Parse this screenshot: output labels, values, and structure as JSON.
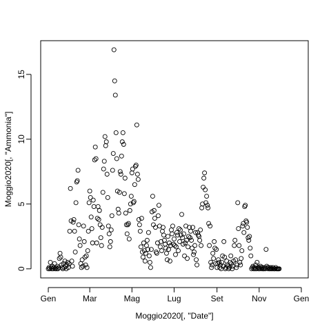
{
  "chart_data": {
    "type": "scatter",
    "title": "",
    "xlabel": "Moggio2020[, \"Date\"]",
    "ylabel": "Moggio2020[, \"Ammonia\"]",
    "x_unit": "date",
    "x_range": [
      "2020-01-01",
      "2021-01-01"
    ],
    "xlim": [
      "2019-12-21",
      "2021-01-11"
    ],
    "ylim": [
      -0.7,
      17.6
    ],
    "x_ticks": [
      {
        "date": "2020-01-01",
        "label": "Gen"
      },
      {
        "date": "2020-03-01",
        "label": "Mar"
      },
      {
        "date": "2020-05-01",
        "label": "Mag"
      },
      {
        "date": "2020-07-01",
        "label": "Lug"
      },
      {
        "date": "2020-09-01",
        "label": "Set"
      },
      {
        "date": "2020-11-01",
        "label": "Nov"
      },
      {
        "date": "2021-01-01",
        "label": "Gen"
      }
    ],
    "y_ticks": [
      0,
      5,
      10,
      15
    ],
    "grid": false,
    "marker": "open-circle",
    "marker_color": "#000000",
    "points": [
      [
        "2020-01-01",
        0.0
      ],
      [
        "2020-01-02",
        0.1
      ],
      [
        "2020-01-03",
        0.0
      ],
      [
        "2020-01-04",
        0.5
      ],
      [
        "2020-01-05",
        0.1
      ],
      [
        "2020-01-06",
        0.0
      ],
      [
        "2020-01-07",
        0.2
      ],
      [
        "2020-01-08",
        0.0
      ],
      [
        "2020-01-09",
        0.1
      ],
      [
        "2020-01-10",
        0.4
      ],
      [
        "2020-01-11",
        0.0
      ],
      [
        "2020-01-12",
        0.1
      ],
      [
        "2020-01-13",
        0.0
      ],
      [
        "2020-01-14",
        0.2
      ],
      [
        "2020-01-15",
        0.0
      ],
      [
        "2020-01-16",
        0.1
      ],
      [
        "2020-01-17",
        0.8
      ],
      [
        "2020-01-18",
        1.2
      ],
      [
        "2020-01-19",
        0.9
      ],
      [
        "2020-01-20",
        0.3
      ],
      [
        "2020-01-21",
        0.1
      ],
      [
        "2020-01-22",
        0.0
      ],
      [
        "2020-01-23",
        0.4
      ],
      [
        "2020-01-24",
        0.1
      ],
      [
        "2020-01-25",
        0.6
      ],
      [
        "2020-01-26",
        0.2
      ],
      [
        "2020-01-27",
        0.0
      ],
      [
        "2020-01-28",
        0.3
      ],
      [
        "2020-01-29",
        0.5
      ],
      [
        "2020-01-30",
        0.1
      ],
      [
        "2020-01-31",
        0.4
      ],
      [
        "2020-02-01",
        2.9
      ],
      [
        "2020-02-02",
        6.2
      ],
      [
        "2020-02-03",
        3.7
      ],
      [
        "2020-02-04",
        0.6
      ],
      [
        "2020-02-05",
        0.2
      ],
      [
        "2020-02-06",
        3.6
      ],
      [
        "2020-02-07",
        3.8
      ],
      [
        "2020-02-08",
        2.9
      ],
      [
        "2020-02-09",
        1.3
      ],
      [
        "2020-02-10",
        5.1
      ],
      [
        "2020-02-11",
        6.7
      ],
      [
        "2020-02-12",
        6.8
      ],
      [
        "2020-02-13",
        7.6
      ],
      [
        "2020-02-14",
        3.4
      ],
      [
        "2020-02-15",
        2.3
      ],
      [
        "2020-02-16",
        1.8
      ],
      [
        "2020-02-17",
        0.4
      ],
      [
        "2020-02-18",
        0.1
      ],
      [
        "2020-02-19",
        0.7
      ],
      [
        "2020-02-20",
        0.2
      ],
      [
        "2020-02-21",
        3.3
      ],
      [
        "2020-02-22",
        2.1
      ],
      [
        "2020-02-23",
        0.9
      ],
      [
        "2020-02-24",
        0.3
      ],
      [
        "2020-02-25",
        1.0
      ],
      [
        "2020-02-26",
        0.1
      ],
      [
        "2020-02-27",
        1.4
      ],
      [
        "2020-02-28",
        2.9
      ],
      [
        "2020-02-29",
        5.1
      ],
      [
        "2020-03-01",
        6.0
      ],
      [
        "2020-03-02",
        5.5
      ],
      [
        "2020-03-03",
        4.0
      ],
      [
        "2020-03-04",
        3.1
      ],
      [
        "2020-03-05",
        2.0
      ],
      [
        "2020-03-06",
        5.3
      ],
      [
        "2020-03-07",
        4.8
      ],
      [
        "2020-03-08",
        8.4
      ],
      [
        "2020-03-09",
        9.4
      ],
      [
        "2020-03-10",
        8.5
      ],
      [
        "2020-03-11",
        2.0
      ],
      [
        "2020-03-12",
        3.9
      ],
      [
        "2020-03-13",
        4.8
      ],
      [
        "2020-03-14",
        3.8
      ],
      [
        "2020-03-15",
        4.5
      ],
      [
        "2020-03-16",
        3.4
      ],
      [
        "2020-03-17",
        2.4
      ],
      [
        "2020-03-18",
        1.8
      ],
      [
        "2020-03-19",
        3.2
      ],
      [
        "2020-03-20",
        5.9
      ],
      [
        "2020-03-21",
        7.7
      ],
      [
        "2020-03-22",
        8.3
      ],
      [
        "2020-03-23",
        10.2
      ],
      [
        "2020-03-24",
        9.5
      ],
      [
        "2020-03-25",
        9.8
      ],
      [
        "2020-03-26",
        7.3
      ],
      [
        "2020-03-27",
        5.5
      ],
      [
        "2020-03-28",
        3.3
      ],
      [
        "2020-03-29",
        2.7
      ],
      [
        "2020-03-30",
        1.7
      ],
      [
        "2020-03-31",
        2.1
      ],
      [
        "2020-04-01",
        3.0
      ],
      [
        "2020-04-02",
        4.1
      ],
      [
        "2020-04-03",
        7.6
      ],
      [
        "2020-04-04",
        8.9
      ],
      [
        "2020-04-05",
        16.9
      ],
      [
        "2020-04-06",
        14.5
      ],
      [
        "2020-04-07",
        13.4
      ],
      [
        "2020-04-08",
        10.5
      ],
      [
        "2020-04-09",
        8.5
      ],
      [
        "2020-04-10",
        6.0
      ],
      [
        "2020-04-11",
        4.6
      ],
      [
        "2020-04-12",
        4.3
      ],
      [
        "2020-04-13",
        5.9
      ],
      [
        "2020-04-14",
        7.5
      ],
      [
        "2020-04-15",
        7.3
      ],
      [
        "2020-04-16",
        8.7
      ],
      [
        "2020-04-17",
        9.8
      ],
      [
        "2020-04-18",
        10.5
      ],
      [
        "2020-04-19",
        9.6
      ],
      [
        "2020-04-20",
        5.8
      ],
      [
        "2020-04-21",
        7.0
      ],
      [
        "2020-04-22",
        4.3
      ],
      [
        "2020-04-23",
        3.4
      ],
      [
        "2020-04-24",
        2.7
      ],
      [
        "2020-04-25",
        3.4
      ],
      [
        "2020-04-26",
        3.5
      ],
      [
        "2020-04-27",
        2.3
      ],
      [
        "2020-04-28",
        4.5
      ],
      [
        "2020-04-29",
        5.0
      ],
      [
        "2020-04-30",
        5.6
      ],
      [
        "2020-05-01",
        7.4
      ],
      [
        "2020-05-02",
        7.7
      ],
      [
        "2020-05-03",
        5.1
      ],
      [
        "2020-05-04",
        5.2
      ],
      [
        "2020-05-05",
        6.5
      ],
      [
        "2020-05-06",
        7.9
      ],
      [
        "2020-05-07",
        8.0
      ],
      [
        "2020-05-08",
        11.1
      ],
      [
        "2020-05-09",
        7.3
      ],
      [
        "2020-05-10",
        6.9
      ],
      [
        "2020-05-11",
        3.8
      ],
      [
        "2020-05-12",
        3.4
      ],
      [
        "2020-05-13",
        2.9
      ],
      [
        "2020-05-14",
        1.7
      ],
      [
        "2020-05-15",
        3.9
      ],
      [
        "2020-05-16",
        1.3
      ],
      [
        "2020-05-17",
        0.9
      ],
      [
        "2020-05-18",
        2.0
      ],
      [
        "2020-05-19",
        1.4
      ],
      [
        "2020-05-20",
        0.6
      ],
      [
        "2020-05-21",
        1.2
      ],
      [
        "2020-05-22",
        1.8
      ],
      [
        "2020-05-23",
        2.2
      ],
      [
        "2020-05-24",
        1.5
      ],
      [
        "2020-05-25",
        2.8
      ],
      [
        "2020-05-26",
        1.0
      ],
      [
        "2020-05-27",
        0.5
      ],
      [
        "2020-05-28",
        0.1
      ],
      [
        "2020-05-29",
        1.5
      ],
      [
        "2020-05-30",
        4.4
      ],
      [
        "2020-05-31",
        5.6
      ],
      [
        "2020-06-01",
        3.4
      ],
      [
        "2020-06-02",
        4.5
      ],
      [
        "2020-06-03",
        3.9
      ],
      [
        "2020-06-04",
        3.2
      ],
      [
        "2020-06-05",
        1.3
      ],
      [
        "2020-06-06",
        1.2
      ],
      [
        "2020-06-07",
        2.0
      ],
      [
        "2020-06-08",
        4.1
      ],
      [
        "2020-06-09",
        4.9
      ],
      [
        "2020-06-10",
        3.3
      ],
      [
        "2020-06-11",
        1.7
      ],
      [
        "2020-06-12",
        2.1
      ],
      [
        "2020-06-13",
        1.4
      ],
      [
        "2020-06-14",
        2.9
      ],
      [
        "2020-06-15",
        3.2
      ],
      [
        "2020-06-16",
        2.6
      ],
      [
        "2020-06-17",
        2.2
      ],
      [
        "2020-06-18",
        1.9
      ],
      [
        "2020-06-19",
        1.6
      ],
      [
        "2020-06-20",
        1.2
      ],
      [
        "2020-06-21",
        0.7
      ],
      [
        "2020-06-22",
        2.5
      ],
      [
        "2020-06-23",
        1.5
      ],
      [
        "2020-06-24",
        2.0
      ],
      [
        "2020-06-25",
        0.6
      ],
      [
        "2020-06-26",
        1.8
      ],
      [
        "2020-06-27",
        3.0
      ],
      [
        "2020-06-28",
        2.7
      ],
      [
        "2020-06-29",
        3.3
      ],
      [
        "2020-06-30",
        1.9
      ],
      [
        "2020-07-01",
        2.3
      ],
      [
        "2020-07-02",
        1.8
      ],
      [
        "2020-07-03",
        1.1
      ],
      [
        "2020-07-04",
        1.7
      ],
      [
        "2020-07-05",
        2.8
      ],
      [
        "2020-07-06",
        2.6
      ],
      [
        "2020-07-07",
        1.4
      ],
      [
        "2020-07-08",
        3.1
      ],
      [
        "2020-07-09",
        2.1
      ],
      [
        "2020-07-10",
        3.0
      ],
      [
        "2020-07-11",
        2.6
      ],
      [
        "2020-07-12",
        4.2
      ],
      [
        "2020-07-13",
        2.4
      ],
      [
        "2020-07-14",
        1.9
      ],
      [
        "2020-07-15",
        2.7
      ],
      [
        "2020-07-16",
        1.0
      ],
      [
        "2020-07-17",
        2.0
      ],
      [
        "2020-07-18",
        3.3
      ],
      [
        "2020-07-19",
        2.2
      ],
      [
        "2020-07-20",
        0.8
      ],
      [
        "2020-07-21",
        1.7
      ],
      [
        "2020-07-22",
        2.5
      ],
      [
        "2020-07-23",
        3.2
      ],
      [
        "2020-07-24",
        2.4
      ],
      [
        "2020-07-25",
        2.9
      ],
      [
        "2020-07-26",
        2.2
      ],
      [
        "2020-07-27",
        1.6
      ],
      [
        "2020-07-28",
        3.2
      ],
      [
        "2020-07-29",
        1.1
      ],
      [
        "2020-07-30",
        1.3
      ],
      [
        "2020-07-31",
        1.8
      ],
      [
        "2020-08-01",
        2.8
      ],
      [
        "2020-08-02",
        0.7
      ],
      [
        "2020-08-03",
        0.3
      ],
      [
        "2020-08-04",
        2.8
      ],
      [
        "2020-08-05",
        2.6
      ],
      [
        "2020-08-06",
        2.5
      ],
      [
        "2020-08-07",
        2.2
      ],
      [
        "2020-08-08",
        3.0
      ],
      [
        "2020-08-09",
        1.8
      ],
      [
        "2020-08-10",
        4.7
      ],
      [
        "2020-08-11",
        5.0
      ],
      [
        "2020-08-12",
        6.3
      ],
      [
        "2020-08-13",
        7.0
      ],
      [
        "2020-08-14",
        7.4
      ],
      [
        "2020-08-15",
        6.1
      ],
      [
        "2020-08-16",
        5.1
      ],
      [
        "2020-08-17",
        5.6
      ],
      [
        "2020-08-18",
        4.9
      ],
      [
        "2020-08-19",
        4.7
      ],
      [
        "2020-08-20",
        3.5
      ],
      [
        "2020-08-21",
        1.8
      ],
      [
        "2020-08-22",
        3.3
      ],
      [
        "2020-08-23",
        0.5
      ],
      [
        "2020-08-24",
        0.1
      ],
      [
        "2020-08-25",
        0.3
      ],
      [
        "2020-08-26",
        1.2
      ],
      [
        "2020-08-27",
        0.8
      ],
      [
        "2020-08-28",
        2.1
      ],
      [
        "2020-08-29",
        1.6
      ],
      [
        "2020-08-30",
        0.4
      ],
      [
        "2020-08-31",
        1.5
      ],
      [
        "2020-09-01",
        0.1
      ],
      [
        "2020-09-02",
        0.4
      ],
      [
        "2020-09-03",
        0.7
      ],
      [
        "2020-09-04",
        0.5
      ],
      [
        "2020-09-05",
        0.1
      ],
      [
        "2020-09-06",
        0.3
      ],
      [
        "2020-09-07",
        0.0
      ],
      [
        "2020-09-08",
        0.5
      ],
      [
        "2020-09-09",
        1.0
      ],
      [
        "2020-09-10",
        0.2
      ],
      [
        "2020-09-11",
        2.1
      ],
      [
        "2020-09-12",
        0.9
      ],
      [
        "2020-09-13",
        0.0
      ],
      [
        "2020-09-14",
        0.1
      ],
      [
        "2020-09-15",
        0.6
      ],
      [
        "2020-09-16",
        0.3
      ],
      [
        "2020-09-17",
        0.2
      ],
      [
        "2020-09-18",
        0.0
      ],
      [
        "2020-09-19",
        0.1
      ],
      [
        "2020-09-20",
        0.5
      ],
      [
        "2020-09-21",
        1.0
      ],
      [
        "2020-09-22",
        0.4
      ],
      [
        "2020-09-23",
        0.0
      ],
      [
        "2020-09-24",
        0.2
      ],
      [
        "2020-09-25",
        0.6
      ],
      [
        "2020-09-26",
        1.8
      ],
      [
        "2020-09-27",
        2.2
      ],
      [
        "2020-09-28",
        0.7
      ],
      [
        "2020-09-29",
        0.1
      ],
      [
        "2020-09-30",
        0.3
      ],
      [
        "2020-10-01",
        5.1
      ],
      [
        "2020-10-02",
        3.1
      ],
      [
        "2020-10-03",
        1.8
      ],
      [
        "2020-10-04",
        0.5
      ],
      [
        "2020-10-05",
        0.3
      ],
      [
        "2020-10-06",
        0.8
      ],
      [
        "2020-10-07",
        1.4
      ],
      [
        "2020-10-08",
        3.3
      ],
      [
        "2020-10-09",
        3.5
      ],
      [
        "2020-10-10",
        2.8
      ],
      [
        "2020-10-11",
        4.8
      ],
      [
        "2020-10-12",
        4.9
      ],
      [
        "2020-10-13",
        3.7
      ],
      [
        "2020-10-14",
        3.6
      ],
      [
        "2020-10-15",
        3.2
      ],
      [
        "2020-10-16",
        2.4
      ],
      [
        "2020-10-17",
        2.2
      ],
      [
        "2020-10-18",
        2.5
      ],
      [
        "2020-10-19",
        1.6
      ],
      [
        "2020-10-20",
        1.0
      ],
      [
        "2020-10-21",
        0.0
      ],
      [
        "2020-10-22",
        0.1
      ],
      [
        "2020-10-23",
        0.2
      ],
      [
        "2020-10-24",
        0.0
      ],
      [
        "2020-10-25",
        0.1
      ],
      [
        "2020-10-26",
        0.0
      ],
      [
        "2020-10-27",
        0.3
      ],
      [
        "2020-10-28",
        0.0
      ],
      [
        "2020-10-29",
        0.5
      ],
      [
        "2020-10-30",
        0.1
      ],
      [
        "2020-10-31",
        0.0
      ],
      [
        "2020-11-01",
        0.1
      ],
      [
        "2020-11-02",
        0.0
      ],
      [
        "2020-11-03",
        0.2
      ],
      [
        "2020-11-04",
        0.1
      ],
      [
        "2020-11-05",
        0.0
      ],
      [
        "2020-11-06",
        0.1
      ],
      [
        "2020-11-07",
        0.0
      ],
      [
        "2020-11-08",
        0.0
      ],
      [
        "2020-11-09",
        0.1
      ],
      [
        "2020-11-10",
        0.0
      ],
      [
        "2020-11-11",
        1.5
      ],
      [
        "2020-11-12",
        0.2
      ],
      [
        "2020-11-13",
        0.1
      ],
      [
        "2020-11-14",
        0.0
      ],
      [
        "2020-11-15",
        0.1
      ],
      [
        "2020-11-16",
        0.0
      ],
      [
        "2020-11-17",
        0.0
      ],
      [
        "2020-11-18",
        0.1
      ],
      [
        "2020-11-19",
        0.0
      ],
      [
        "2020-11-20",
        0.0
      ],
      [
        "2020-11-21",
        0.1
      ],
      [
        "2020-11-22",
        0.0
      ],
      [
        "2020-11-23",
        0.0
      ],
      [
        "2020-11-24",
        0.0
      ],
      [
        "2020-11-25",
        0.1
      ],
      [
        "2020-11-26",
        0.0
      ],
      [
        "2020-11-27",
        0.0
      ],
      [
        "2020-11-28",
        0.0
      ],
      [
        "2020-11-29",
        0.0
      ],
      [
        "2020-11-30",
        0.0
      ]
    ]
  }
}
